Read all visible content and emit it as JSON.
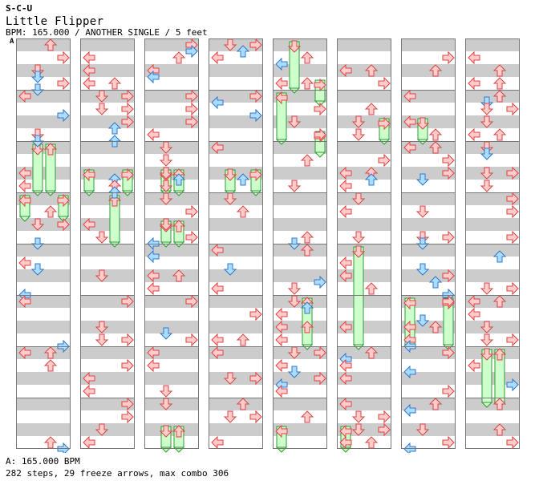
{
  "header": {
    "brand": "S-C-U",
    "song_title": "Little Flipper",
    "info": "BPM: 165.000 / ANOTHER SINGLE / 5 feet",
    "bpm_marker": "A"
  },
  "footer": {
    "bpm_line": "A: 165.000 BPM",
    "stats": "282 steps, 29 freeze arrows, max combo 306"
  },
  "colors": {
    "stripe": "#cccccc",
    "red_fill": "#ffcccc",
    "red_stroke": "#dd4444",
    "blue_fill": "#aaddff",
    "blue_stroke": "#3377cc",
    "freeze_fill": "#ccffcc",
    "freeze_stroke": "#339933",
    "column_border": "#777777"
  },
  "chart_data": {
    "type": "step_chart",
    "columns": 8,
    "measures_per_column": 8,
    "lanes": [
      "left",
      "down",
      "up",
      "right"
    ],
    "note_kinds": [
      "quarter (red)",
      "eighth (blue)",
      "freeze (green)"
    ],
    "step_count": 282,
    "freeze_count": 29,
    "max_combo": 306
  }
}
